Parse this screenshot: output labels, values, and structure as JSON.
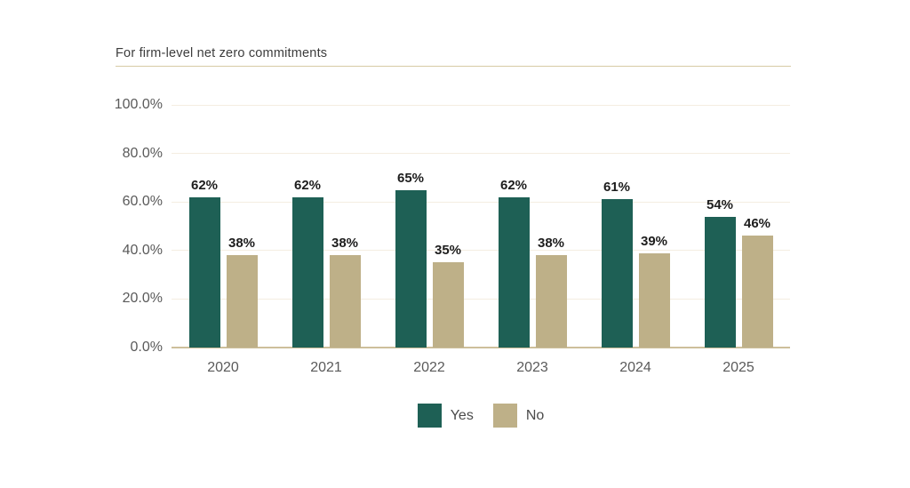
{
  "chart_data": {
    "type": "bar",
    "title": "For firm-level net zero commitments",
    "categories": [
      "2020",
      "2021",
      "2022",
      "2023",
      "2024",
      "2025"
    ],
    "series": [
      {
        "name": "Yes",
        "color": "#1E6055",
        "values": [
          62,
          62,
          65,
          62,
          61,
          54
        ]
      },
      {
        "name": "No",
        "color": "#BEB088",
        "values": [
          38,
          38,
          35,
          38,
          39,
          46
        ]
      }
    ],
    "data_label_suffix": "%",
    "y_ticks": [
      {
        "value": 0,
        "label": "0.0%"
      },
      {
        "value": 20,
        "label": "20.0%"
      },
      {
        "value": 40,
        "label": "40.0%"
      },
      {
        "value": 60,
        "label": "60.0%"
      },
      {
        "value": 80,
        "label": "80.0%"
      },
      {
        "value": 100,
        "label": "100.0%"
      }
    ],
    "ylim": [
      0,
      100
    ],
    "grid": true,
    "legend_position": "bottom"
  },
  "colors": {
    "title_rule": "#D7CAA5",
    "gridline": "#F4EDE1",
    "axis_line": "#CDBF9B",
    "tick_text": "#5A5A5A",
    "data_label_text": "#1D1D1D",
    "title_text": "#3C3C3C"
  }
}
